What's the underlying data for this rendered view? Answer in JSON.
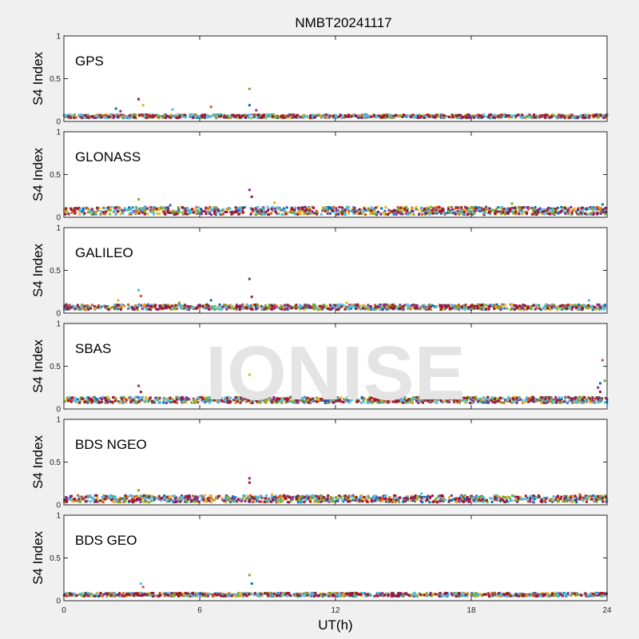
{
  "figure": {
    "title": "NMBT20241117",
    "xlabel": "UT(h)",
    "ylabel": "S4 Index",
    "watermark": "IONISE"
  },
  "colors": {
    "background": "#f0f0f0",
    "axes": "#ffffff",
    "axis_line": "#262626",
    "watermark": "#e4e4e4",
    "series": [
      "#0072BD",
      "#D95319",
      "#EDB120",
      "#7E2F8E",
      "#77AC30",
      "#4DBEEE",
      "#A2142F"
    ]
  },
  "chart_data": [
    {
      "type": "scatter",
      "panel_label": "GPS",
      "xlim": [
        0,
        24
      ],
      "ylim": [
        0,
        1
      ],
      "xticks": [
        0,
        6,
        12,
        18,
        24
      ],
      "yticks": [
        0,
        0.5,
        1
      ],
      "ytick_labels": [
        "0",
        "0.5",
        "1"
      ],
      "grid": false,
      "baseline": [
        0.04,
        0.08
      ],
      "spikes": [
        [
          2.3,
          0.15
        ],
        [
          2.5,
          0.12
        ],
        [
          3.3,
          0.26
        ],
        [
          3.5,
          0.19
        ],
        [
          4.8,
          0.14
        ],
        [
          6.5,
          0.17
        ],
        [
          8.2,
          0.38
        ],
        [
          8.2,
          0.19
        ],
        [
          8.5,
          0.13
        ]
      ]
    },
    {
      "type": "scatter",
      "panel_label": "GLONASS",
      "xlim": [
        0,
        24
      ],
      "ylim": [
        0,
        1
      ],
      "xticks": [
        0,
        6,
        12,
        18,
        24
      ],
      "yticks": [
        0,
        0.5,
        1
      ],
      "ytick_labels": [
        "0",
        "0.5",
        "1"
      ],
      "grid": false,
      "baseline": [
        0.03,
        0.12
      ],
      "spikes": [
        [
          1.0,
          0.11
        ],
        [
          3.3,
          0.21
        ],
        [
          4.7,
          0.14
        ],
        [
          8.2,
          0.32
        ],
        [
          8.3,
          0.24
        ],
        [
          9.3,
          0.17
        ],
        [
          12.5,
          0.12
        ],
        [
          16.5,
          0.12
        ],
        [
          19.8,
          0.16
        ],
        [
          23.8,
          0.15
        ]
      ]
    },
    {
      "type": "scatter",
      "panel_label": "GALILEO",
      "xlim": [
        0,
        24
      ],
      "ylim": [
        0,
        1
      ],
      "xticks": [
        0,
        6,
        12,
        18,
        24
      ],
      "yticks": [
        0,
        0.5,
        1
      ],
      "ytick_labels": [
        "0",
        "0.5",
        "1"
      ],
      "grid": false,
      "baseline": [
        0.04,
        0.1
      ],
      "spikes": [
        [
          2.4,
          0.15
        ],
        [
          3.3,
          0.27
        ],
        [
          3.4,
          0.2
        ],
        [
          5.1,
          0.12
        ],
        [
          6.5,
          0.15
        ],
        [
          8.2,
          0.4
        ],
        [
          8.3,
          0.19
        ],
        [
          12.5,
          0.12
        ],
        [
          23.2,
          0.15
        ]
      ]
    },
    {
      "type": "scatter",
      "panel_label": "SBAS",
      "xlim": [
        0,
        24
      ],
      "ylim": [
        0,
        1
      ],
      "xticks": [
        0,
        6,
        12,
        18,
        24
      ],
      "yticks": [
        0,
        0.5,
        1
      ],
      "ytick_labels": [
        "0",
        "0.5",
        "1"
      ],
      "grid": false,
      "baseline": [
        0.07,
        0.14
      ],
      "spikes": [
        [
          3.3,
          0.27
        ],
        [
          3.4,
          0.2
        ],
        [
          8.2,
          0.4
        ],
        [
          8.3,
          0.2
        ],
        [
          23.8,
          0.57
        ],
        [
          23.9,
          0.33
        ],
        [
          23.7,
          0.3
        ],
        [
          23.6,
          0.25
        ],
        [
          23.7,
          0.2
        ]
      ]
    },
    {
      "type": "scatter",
      "panel_label": "BDS NGEO",
      "xlim": [
        0,
        24
      ],
      "ylim": [
        0,
        1
      ],
      "xticks": [
        0,
        6,
        12,
        18,
        24
      ],
      "yticks": [
        0,
        0.5,
        1
      ],
      "ytick_labels": [
        "0",
        "0.5",
        "1"
      ],
      "grid": false,
      "baseline": [
        0.03,
        0.11
      ],
      "spikes": [
        [
          3.3,
          0.17
        ],
        [
          3.5,
          0.1
        ],
        [
          8.2,
          0.31
        ],
        [
          8.2,
          0.26
        ],
        [
          9.2,
          0.12
        ],
        [
          15.8,
          0.13
        ],
        [
          22.8,
          0.12
        ]
      ]
    },
    {
      "type": "scatter",
      "panel_label": "BDS GEO",
      "xlim": [
        0,
        24
      ],
      "ylim": [
        0,
        1
      ],
      "xticks": [
        0,
        6,
        12,
        18,
        24
      ],
      "yticks": [
        0,
        0.5,
        1
      ],
      "ytick_labels": [
        "0",
        "0.5",
        "1"
      ],
      "grid": false,
      "baseline": [
        0.05,
        0.09
      ],
      "spikes": [
        [
          3.4,
          0.2
        ],
        [
          3.5,
          0.16
        ],
        [
          8.2,
          0.3
        ],
        [
          8.3,
          0.2
        ]
      ]
    }
  ]
}
